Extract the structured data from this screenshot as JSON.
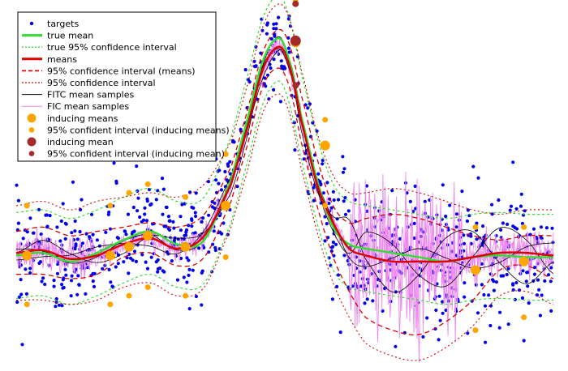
{
  "chart_data": {
    "type": "line",
    "title": "",
    "xlabel": "",
    "ylabel": "",
    "xlim": [
      0,
      10
    ],
    "ylim": [
      -1.25,
      2.9
    ],
    "grid": false,
    "axes_visible": false,
    "legend_position": "top-left",
    "legend": [
      {
        "label": "targets",
        "style": "point",
        "color": "#0000ee"
      },
      {
        "label": "true mean",
        "style": "solid",
        "color": "#33dd33"
      },
      {
        "label": "true 95% confidence interval",
        "style": "dotted",
        "color": "#33dd33"
      },
      {
        "label": "means",
        "style": "solid",
        "color": "#dd0000"
      },
      {
        "label": "95% confidence interval (means)",
        "style": "dashed",
        "color": "#dd0000"
      },
      {
        "label": "95% confidence interval",
        "style": "dotted",
        "color": "#dd0000"
      },
      {
        "label": "FITC mean samples",
        "style": "thin",
        "color": "#000000"
      },
      {
        "label": "FIC mean samples",
        "style": "thin",
        "color": "#ee88ee"
      },
      {
        "label": "inducing means",
        "style": "bigdot",
        "color": "#ffa500"
      },
      {
        "label": "95% confident interval (inducing means)",
        "style": "smalldot",
        "color": "#ffa500"
      },
      {
        "label": "inducing mean",
        "style": "bigdot",
        "color": "#a52a2a"
      },
      {
        "label": "95% confident interval (inducing mean)",
        "style": "smalldot",
        "color": "#a52a2a"
      }
    ],
    "series": [
      {
        "name": "true mean",
        "x": [
          0,
          0.5,
          1,
          1.5,
          2,
          2.5,
          3,
          3.5,
          4,
          4.3,
          4.6,
          4.9,
          5.1,
          5.3,
          5.6,
          5.9,
          6.2,
          6.5,
          7,
          7.5,
          8,
          8.5,
          9,
          9.5,
          10
        ],
        "values": [
          0.02,
          0.05,
          -0.05,
          0.05,
          0.2,
          0.3,
          0.15,
          0.2,
          0.9,
          1.6,
          2.3,
          2.55,
          2.25,
          1.65,
          0.9,
          0.35,
          0.15,
          0.1,
          0.05,
          0.0,
          -0.05,
          0.0,
          0.02,
          0.0,
          0.0
        ]
      },
      {
        "name": "means",
        "x": [
          0,
          0.5,
          1,
          1.5,
          2,
          2.5,
          3,
          3.5,
          4,
          4.3,
          4.6,
          4.9,
          5.1,
          5.3,
          5.6,
          5.9,
          6.2,
          6.5,
          7,
          7.5,
          8,
          8.5,
          9,
          9.5,
          10
        ],
        "values": [
          0.05,
          0.08,
          -0.02,
          0.02,
          0.15,
          0.22,
          0.1,
          0.25,
          0.85,
          1.5,
          2.2,
          2.45,
          2.2,
          1.6,
          0.85,
          0.4,
          0.1,
          0.02,
          -0.05,
          -0.05,
          -0.05,
          0.0,
          0.05,
          0.05,
          0.02
        ]
      },
      {
        "name": "95% confidence interval (means)",
        "x": [
          0,
          0.5,
          1,
          1.5,
          2,
          2.5,
          3,
          3.5,
          4,
          4.3,
          4.6,
          4.9,
          5.1,
          5.3,
          5.6,
          5.9,
          6.2,
          6.5,
          7,
          7.5,
          8,
          8.5,
          9,
          9.5,
          10
        ],
        "upper": [
          0.3,
          0.35,
          0.25,
          0.3,
          0.35,
          0.4,
          0.35,
          0.5,
          1.05,
          1.7,
          2.4,
          2.65,
          2.45,
          1.9,
          1.15,
          0.6,
          0.4,
          0.45,
          0.5,
          0.45,
          0.35,
          0.25,
          0.2,
          0.25,
          0.25
        ],
        "lower": [
          -0.2,
          -0.2,
          -0.25,
          -0.2,
          0.0,
          0.05,
          -0.1,
          0.0,
          0.65,
          1.3,
          2.0,
          2.2,
          1.95,
          1.35,
          0.6,
          0.0,
          -0.4,
          -0.7,
          -0.85,
          -0.9,
          -0.75,
          -0.5,
          -0.15,
          -0.1,
          -0.25
        ]
      },
      {
        "name": "95% confidence interval",
        "x": [
          0,
          0.5,
          1,
          1.5,
          2,
          2.5,
          3,
          3.5,
          4,
          4.3,
          4.6,
          4.9,
          5.1,
          5.3,
          5.6,
          5.9,
          6.2,
          6.5,
          7,
          7.5,
          8,
          8.5,
          9,
          9.5,
          10
        ],
        "upper": [
          0.6,
          0.65,
          0.55,
          0.65,
          0.7,
          0.75,
          0.7,
          0.85,
          1.35,
          2.0,
          2.7,
          2.95,
          2.75,
          2.2,
          1.45,
          0.95,
          0.75,
          0.75,
          0.8,
          0.75,
          0.65,
          0.55,
          0.5,
          0.55,
          0.55
        ],
        "lower": [
          -0.5,
          -0.5,
          -0.55,
          -0.5,
          -0.35,
          -0.3,
          -0.45,
          -0.35,
          0.35,
          1.0,
          1.7,
          1.9,
          1.65,
          1.05,
          0.3,
          -0.3,
          -0.7,
          -1.0,
          -1.15,
          -1.2,
          -1.05,
          -0.8,
          -0.45,
          -0.4,
          -0.55
        ]
      },
      {
        "name": "true 95% confidence interval",
        "x": [
          0,
          0.5,
          1,
          1.5,
          2,
          2.5,
          3,
          3.5,
          4,
          4.3,
          4.6,
          4.9,
          5.1,
          5.3,
          5.6,
          5.9,
          6.2,
          6.5,
          7,
          7.5,
          8,
          8.5,
          9,
          9.5,
          10
        ],
        "upper": [
          0.52,
          0.55,
          0.45,
          0.55,
          0.7,
          0.8,
          0.65,
          0.7,
          1.4,
          2.1,
          2.8,
          3.05,
          2.75,
          2.15,
          1.4,
          0.85,
          0.65,
          0.6,
          0.55,
          0.5,
          0.45,
          0.5,
          0.52,
          0.5,
          0.5
        ],
        "lower": [
          -0.48,
          -0.45,
          -0.55,
          -0.45,
          -0.3,
          -0.2,
          -0.35,
          -0.3,
          0.4,
          1.1,
          1.8,
          2.05,
          1.75,
          1.15,
          0.4,
          -0.15,
          -0.35,
          -0.4,
          -0.45,
          -0.5,
          -0.55,
          -0.5,
          -0.48,
          -0.5,
          -0.5
        ]
      }
    ],
    "inducing_means": {
      "x": [
        0.2,
        1.75,
        2.1,
        2.45,
        3.15,
        3.9,
        5.2,
        5.75,
        8.55,
        9.45
      ],
      "values": [
        0.02,
        0.02,
        0.12,
        0.25,
        0.12,
        0.6,
        2.5,
        1.3,
        -0.15,
        -0.05
      ],
      "upper": [
        0.6,
        0.6,
        0.75,
        0.85,
        0.7,
        1.2,
        3.0,
        1.6,
        0.35,
        0.35
      ],
      "lower": [
        -0.55,
        -0.55,
        -0.45,
        -0.35,
        -0.45,
        0.0,
        2.0,
        0.6,
        -0.85,
        -0.7
      ]
    },
    "inducing_mean": {
      "x": [
        5.2
      ],
      "values": [
        2.52
      ],
      "upper": [
        2.95
      ],
      "lower": [
        2.0
      ]
    },
    "targets": {
      "count_description": "scattered noisy observations",
      "x_range": [
        0,
        10
      ],
      "y_range": [
        -1.2,
        2.8
      ]
    }
  }
}
